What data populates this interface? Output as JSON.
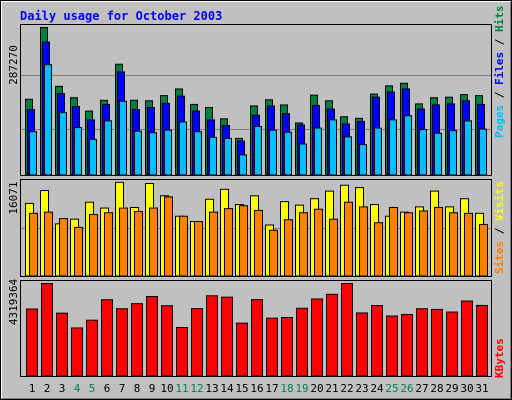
{
  "title": "Daily usage for October 2003",
  "colors": {
    "background": "#c0c0c0",
    "title": "#0000ff",
    "hits": "#008040",
    "files": "#0000ff",
    "pages": "#00c0ff",
    "visits": "#ffff00",
    "sites": "#ff8000",
    "kbytes": "#ff0000",
    "weekday_label": "#000000",
    "weekend_label": "#00805c"
  },
  "side_labels": {
    "top": {
      "pages": "Pages",
      "sep1": " / ",
      "files": "Files",
      "sep2": " / ",
      "hits": "Hits"
    },
    "middle": {
      "sites": "Sites",
      "sep": " / ",
      "visits": "Visits"
    },
    "bottom": {
      "kbytes": "KBytes"
    }
  },
  "chart_data": [
    {
      "type": "bar",
      "panel": "hits-files-pages",
      "max_label": "287270",
      "ylim": [
        0,
        287270
      ],
      "categories": [
        "1",
        "2",
        "3",
        "4",
        "5",
        "6",
        "7",
        "8",
        "9",
        "10",
        "11",
        "12",
        "13",
        "14",
        "15",
        "16",
        "17",
        "18",
        "19",
        "20",
        "21",
        "22",
        "23",
        "24",
        "25",
        "26",
        "27",
        "28",
        "29",
        "30",
        "31"
      ],
      "weekend_days": [
        "4",
        "5",
        "11",
        "12",
        "18",
        "19",
        "25",
        "26"
      ],
      "series": [
        {
          "name": "Hits",
          "values": [
            148000,
            287270,
            173000,
            151000,
            125000,
            146000,
            216000,
            146000,
            145000,
            155000,
            168000,
            138000,
            132000,
            110000,
            72000,
            135000,
            147000,
            137000,
            102000,
            156000,
            145000,
            114000,
            111000,
            158000,
            174000,
            179000,
            139000,
            151000,
            152000,
            157000,
            155000
          ]
        },
        {
          "name": "Files",
          "values": [
            128000,
            259000,
            159000,
            134000,
            108000,
            138000,
            201000,
            128000,
            132000,
            140000,
            154000,
            125000,
            108000,
            97000,
            67000,
            117000,
            135000,
            120000,
            98000,
            136000,
            129000,
            100000,
            105000,
            152000,
            162000,
            168000,
            129000,
            137000,
            139000,
            145000,
            138000
          ]
        },
        {
          "name": "Pages",
          "values": [
            85000,
            215000,
            122000,
            93000,
            70000,
            106000,
            144000,
            86000,
            83000,
            88000,
            104000,
            85000,
            74000,
            72000,
            40000,
            95000,
            88000,
            84000,
            61000,
            92000,
            108000,
            75000,
            60000,
            92000,
            108000,
            116000,
            89000,
            82000,
            87000,
            106000,
            90000
          ]
        }
      ]
    },
    {
      "type": "bar",
      "panel": "visits-sites",
      "max_label": "16071",
      "ylim": [
        0,
        16071
      ],
      "categories": [
        "1",
        "2",
        "3",
        "4",
        "5",
        "6",
        "7",
        "8",
        "9",
        "10",
        "11",
        "12",
        "13",
        "14",
        "15",
        "16",
        "17",
        "18",
        "19",
        "20",
        "21",
        "22",
        "23",
        "24",
        "25",
        "26",
        "27",
        "28",
        "29",
        "30",
        "31"
      ],
      "series": [
        {
          "name": "Visits",
          "values": [
            12500,
            14700,
            9000,
            9800,
            12700,
            11700,
            16100,
            11800,
            15900,
            13800,
            10300,
            9400,
            13200,
            14900,
            12300,
            13800,
            8800,
            12800,
            12200,
            13300,
            14600,
            15600,
            15200,
            12300,
            10300,
            11000,
            11900,
            14600,
            11900,
            13300,
            10800
          ]
        },
        {
          "name": "Sites",
          "values": [
            10800,
            11000,
            9900,
            8400,
            10600,
            10900,
            11700,
            11100,
            11700,
            13600,
            10300,
            9400,
            11000,
            11600,
            12100,
            11300,
            7900,
            9700,
            10900,
            11500,
            9800,
            12700,
            11900,
            9200,
            11800,
            10900,
            11200,
            11800,
            10900,
            10800,
            8900
          ]
        }
      ]
    },
    {
      "type": "bar",
      "panel": "kbytes",
      "max_label": "4319364",
      "ylim": [
        0,
        4319364
      ],
      "categories": [
        "1",
        "2",
        "3",
        "4",
        "5",
        "6",
        "7",
        "8",
        "9",
        "10",
        "11",
        "12",
        "13",
        "14",
        "15",
        "16",
        "17",
        "18",
        "19",
        "20",
        "21",
        "22",
        "23",
        "24",
        "25",
        "26",
        "27",
        "28",
        "29",
        "30",
        "31"
      ],
      "series": [
        {
          "name": "KBytes",
          "values": [
            3133000,
            4319364,
            2943000,
            2255000,
            2615000,
            3566000,
            3147000,
            3382000,
            3715000,
            3288000,
            2277000,
            3151000,
            3748000,
            3684000,
            2479000,
            3571000,
            2709000,
            2741000,
            3169000,
            3601000,
            3817000,
            4319364,
            2951000,
            3296000,
            2808000,
            2883000,
            3147000,
            3116000,
            2993000,
            3505000,
            3301000
          ]
        }
      ]
    }
  ]
}
